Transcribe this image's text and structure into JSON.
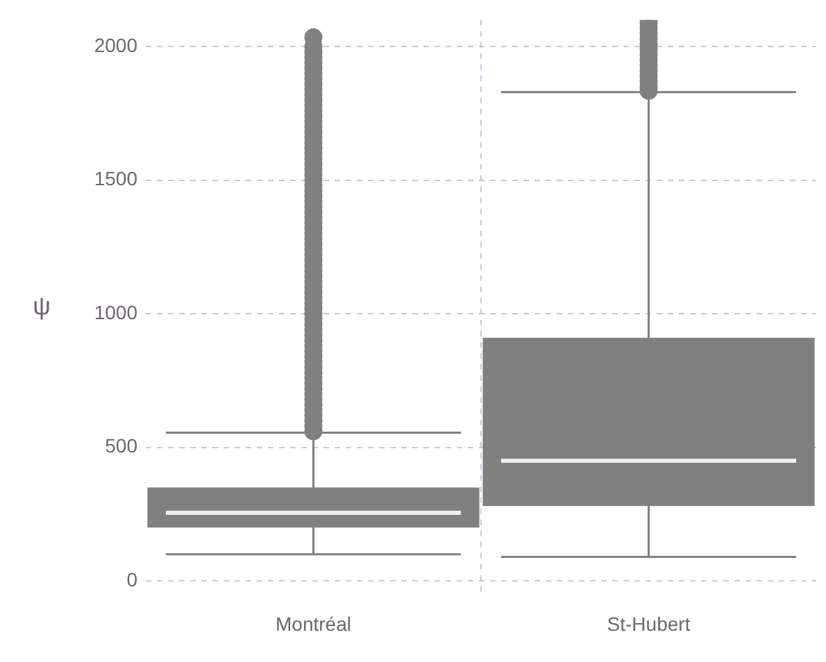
{
  "chart_data": {
    "type": "box",
    "ylabel": "ψ",
    "categories": [
      "Montréal",
      "St-Hubert"
    ],
    "color": "#808080",
    "boxes": [
      {
        "low": 100,
        "q1": 200,
        "median": 255,
        "q3": 350,
        "high": 555,
        "outliers": [
          560,
          580,
          600,
          620,
          640,
          660,
          680,
          700,
          720,
          740,
          760,
          780,
          800,
          820,
          840,
          860,
          880,
          900,
          920,
          940,
          960,
          980,
          1000,
          1020,
          1040,
          1060,
          1080,
          1100,
          1120,
          1140,
          1160,
          1180,
          1200,
          1220,
          1240,
          1260,
          1280,
          1300,
          1320,
          1340,
          1360,
          1380,
          1400,
          1420,
          1440,
          1460,
          1480,
          1500,
          1520,
          1540,
          1560,
          1580,
          1600,
          1620,
          1640,
          1660,
          1680,
          1700,
          1720,
          1740,
          1760,
          1780,
          1800,
          1820,
          1840,
          1860,
          1880,
          1900,
          1920,
          1940,
          1960,
          1980,
          2000,
          2035
        ]
      },
      {
        "low": 90,
        "q1": 280,
        "median": 450,
        "q3": 910,
        "high": 1830,
        "outliers": [
          1835,
          1850,
          1870,
          1890,
          1910,
          1930,
          1950,
          1970,
          1990,
          2010,
          2030,
          2050,
          2070,
          2090
        ]
      }
    ],
    "ylim": [
      -50,
      2100
    ],
    "yticks": [
      0,
      500,
      1000,
      1500,
      2000
    ],
    "grid": true
  }
}
